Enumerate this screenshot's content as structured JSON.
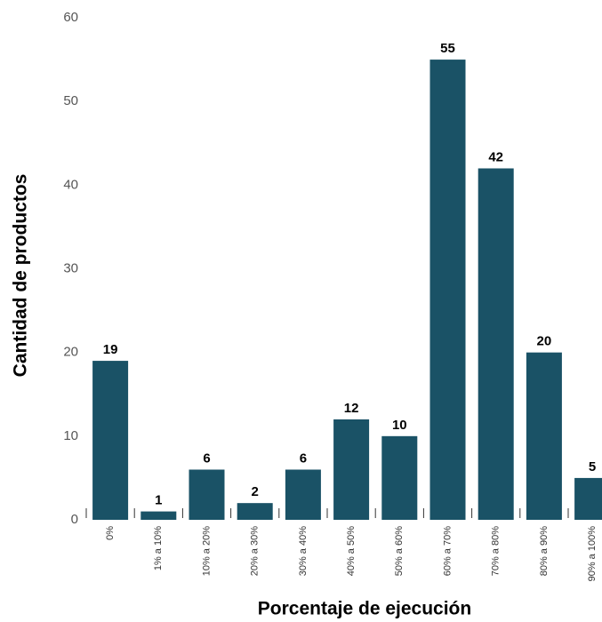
{
  "chart_data": {
    "type": "bar",
    "x_label": "Porcentaje de ejecución",
    "y_label": "Cantidad de productos",
    "categories": [
      "0%",
      "1% a 10%",
      "10% a 20%",
      "20% a 30%",
      "30% a 40%",
      "40% a 50%",
      "50% a 60%",
      "60% a 70%",
      "70% a 80%",
      "80% a 90%",
      "90% a 100%"
    ],
    "values": [
      19,
      1,
      6,
      2,
      6,
      12,
      10,
      55,
      42,
      20,
      5
    ],
    "color": "#1a5266",
    "ylim": [
      0,
      60
    ],
    "yticks": [
      0,
      10,
      20,
      30,
      40,
      50,
      60
    ],
    "grid": false
  }
}
